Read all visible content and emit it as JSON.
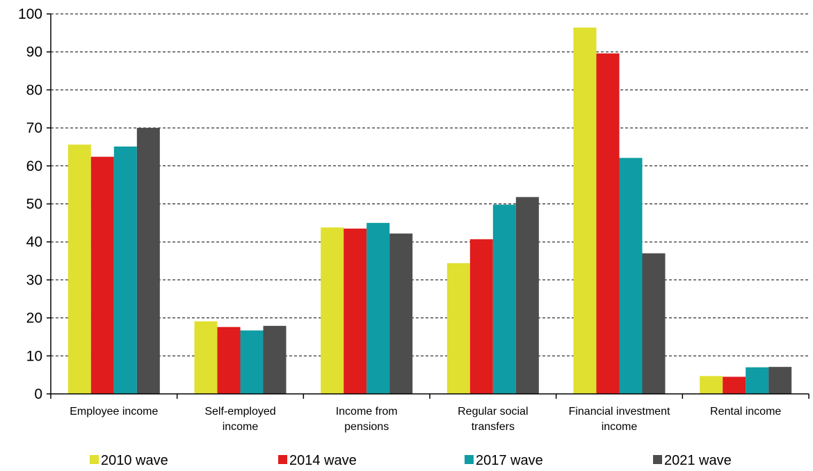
{
  "chart_data": {
    "type": "bar",
    "title": "",
    "xlabel": "",
    "ylabel": "",
    "ylim": [
      0,
      100
    ],
    "yticks": [
      0,
      10,
      20,
      30,
      40,
      50,
      60,
      70,
      80,
      90,
      100
    ],
    "grid": true,
    "legend_position": "bottom",
    "categories": [
      [
        "Employee income"
      ],
      [
        "Self-employed",
        "income"
      ],
      [
        "Income from",
        "pensions"
      ],
      [
        "Regular social",
        "transfers"
      ],
      [
        "Financial investment",
        "income"
      ],
      [
        "Rental income"
      ]
    ],
    "series": [
      {
        "name": "2010 wave",
        "color": "#e0e030",
        "values": [
          65.6,
          19.1,
          43.8,
          34.4,
          96.4,
          4.7
        ]
      },
      {
        "name": "2014 wave",
        "color": "#e01c1c",
        "values": [
          62.4,
          17.6,
          43.5,
          40.7,
          89.6,
          4.5
        ]
      },
      {
        "name": "2017 wave",
        "color": "#109ca4",
        "values": [
          65.1,
          16.7,
          45.0,
          49.8,
          62.1,
          7.0
        ]
      },
      {
        "name": "2021 wave",
        "color": "#4d4d4d",
        "values": [
          70.0,
          17.9,
          42.2,
          51.8,
          37.0,
          7.1
        ]
      }
    ]
  }
}
